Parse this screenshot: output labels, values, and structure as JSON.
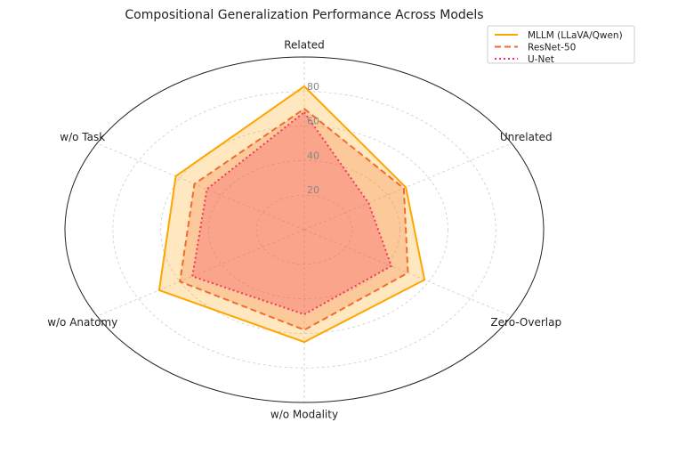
{
  "chart_data": {
    "type": "radar",
    "title": "Compositional Generalization Performance Across Models",
    "axes": [
      "Related",
      "Unrelated",
      "Zero-Overlap",
      "w/o Modality",
      "w/o Anatomy",
      "w/o Task"
    ],
    "rlim": [
      0,
      100
    ],
    "rticks": [
      20,
      40,
      60,
      80
    ],
    "grid": true,
    "legend_position": "top-right",
    "series": [
      {
        "name": "MLLM (LLaVA/Qwen)",
        "values": [
          83,
          49,
          58,
          65,
          70,
          62
        ],
        "color": "#FFA500",
        "line_style": "solid"
      },
      {
        "name": "ResNet-50",
        "values": [
          70,
          48,
          50,
          58,
          60,
          53
        ],
        "color": "#F26B2E",
        "line_style": "dashed"
      },
      {
        "name": "U-Net",
        "values": [
          68,
          31,
          42,
          49,
          54,
          47
        ],
        "color": "#F4365C",
        "line_style": "dotted"
      }
    ]
  }
}
